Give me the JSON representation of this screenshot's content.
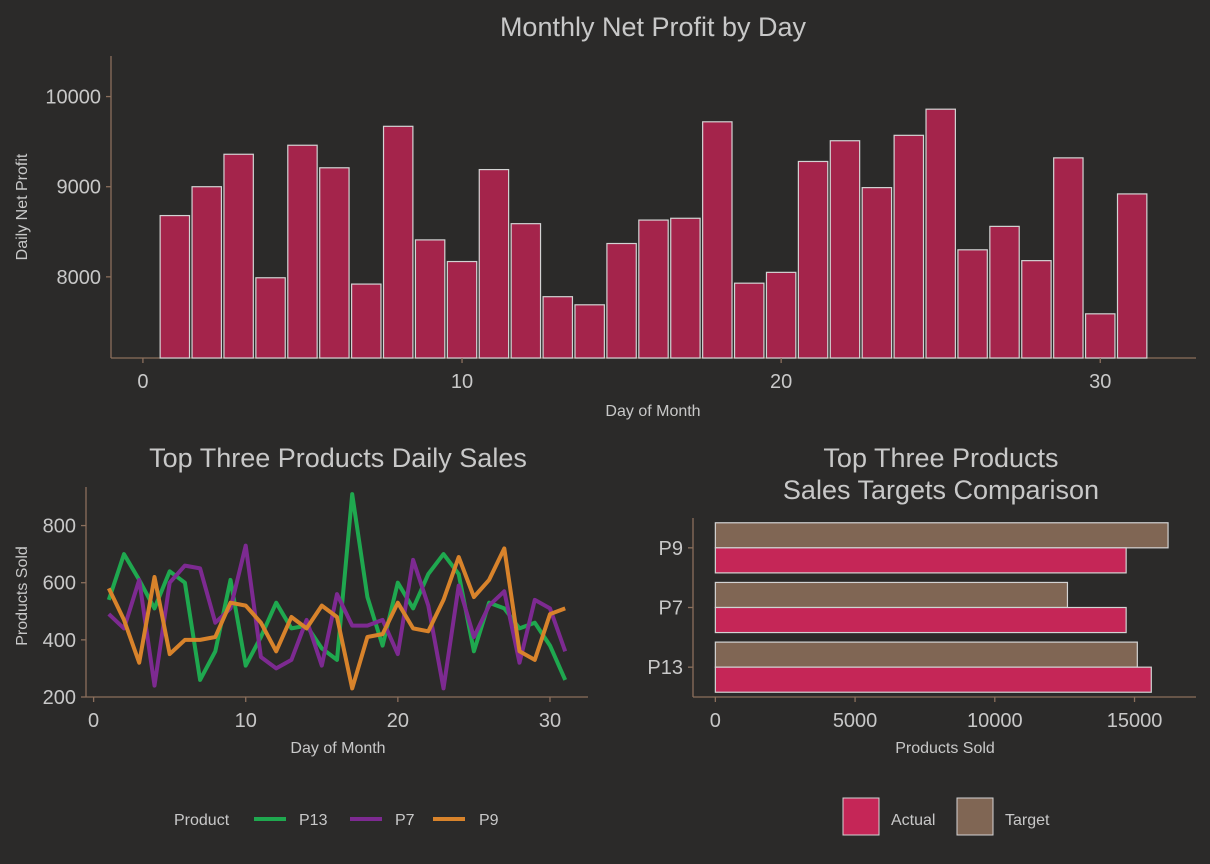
{
  "chart_data": [
    {
      "type": "bar",
      "title": "Monthly Net Profit by Day",
      "xlabel": "Day of Month",
      "ylabel": "Daily Net Profit",
      "xlim": [
        -1,
        33
      ],
      "ylim": [
        7100,
        10450
      ],
      "x_ticks": [
        0,
        10,
        20,
        30
      ],
      "y_ticks": [
        8000,
        9000,
        10000
      ],
      "bar_color": "#a4244b",
      "bar_edge_color": "#d3d3d3",
      "x": [
        1,
        2,
        3,
        4,
        5,
        6,
        7,
        8,
        9,
        10,
        11,
        12,
        13,
        14,
        15,
        16,
        17,
        18,
        19,
        20,
        21,
        22,
        23,
        24,
        25,
        26,
        27,
        28,
        29,
        30,
        31
      ],
      "values": [
        8680,
        9000,
        9360,
        7990,
        9460,
        9210,
        7920,
        9670,
        8410,
        8170,
        9190,
        8590,
        7780,
        7690,
        8370,
        8630,
        8650,
        9720,
        7930,
        8050,
        9280,
        9510,
        8990,
        9570,
        9860,
        8300,
        8560,
        8180,
        9320,
        7590,
        8920
      ]
    },
    {
      "type": "line",
      "title": "Top Three Products Daily Sales",
      "xlabel": "Day of Month",
      "ylabel": "Products Sold",
      "xlim": [
        -0.5,
        32.5
      ],
      "ylim": [
        200,
        935
      ],
      "x_ticks": [
        0,
        10,
        20,
        30
      ],
      "y_ticks": [
        200,
        400,
        600,
        800
      ],
      "legend_title": "Product",
      "legend_position": "bottom",
      "x": [
        1,
        2,
        3,
        4,
        5,
        6,
        7,
        8,
        9,
        10,
        11,
        12,
        13,
        14,
        15,
        16,
        17,
        18,
        19,
        20,
        21,
        22,
        23,
        24,
        25,
        26,
        27,
        28,
        29,
        30,
        31
      ],
      "series": [
        {
          "name": "P13",
          "color": "#1fa84f",
          "values": [
            540,
            700,
            610,
            510,
            640,
            600,
            260,
            360,
            610,
            310,
            410,
            530,
            440,
            450,
            370,
            330,
            910,
            550,
            380,
            600,
            510,
            630,
            700,
            630,
            360,
            530,
            510,
            440,
            460,
            380,
            260
          ]
        },
        {
          "name": "P7",
          "color": "#7d2a91",
          "values": [
            490,
            440,
            610,
            240,
            600,
            660,
            650,
            460,
            510,
            730,
            340,
            300,
            330,
            470,
            310,
            560,
            450,
            450,
            470,
            350,
            680,
            520,
            230,
            590,
            410,
            520,
            570,
            320,
            540,
            510,
            360
          ]
        },
        {
          "name": "P9",
          "color": "#d8832b",
          "values": [
            580,
            470,
            320,
            620,
            350,
            400,
            400,
            410,
            530,
            520,
            460,
            360,
            480,
            440,
            520,
            480,
            230,
            410,
            420,
            530,
            440,
            430,
            540,
            690,
            550,
            610,
            720,
            360,
            330,
            490,
            510
          ]
        }
      ]
    },
    {
      "type": "bar",
      "orientation": "horizontal",
      "title": "Top Three Products\nSales Targets Comparison",
      "title_lines": [
        "Top Three Products",
        "Sales Targets Comparison"
      ],
      "xlabel": "Products Sold",
      "ylabel": "",
      "categories": [
        "P9",
        "P7",
        "P13"
      ],
      "xlim": [
        -800,
        17200
      ],
      "x_ticks": [
        0,
        5000,
        10000,
        15000
      ],
      "x_tick_labels": [
        "0",
        "5000",
        "10000",
        "15000"
      ],
      "legend_position": "bottom",
      "series": [
        {
          "name": "Target",
          "color": "#806654",
          "values": [
            16200,
            12600,
            15100
          ]
        },
        {
          "name": "Actual",
          "color": "#c52657",
          "values": [
            14700,
            14700,
            15600
          ]
        }
      ]
    }
  ]
}
